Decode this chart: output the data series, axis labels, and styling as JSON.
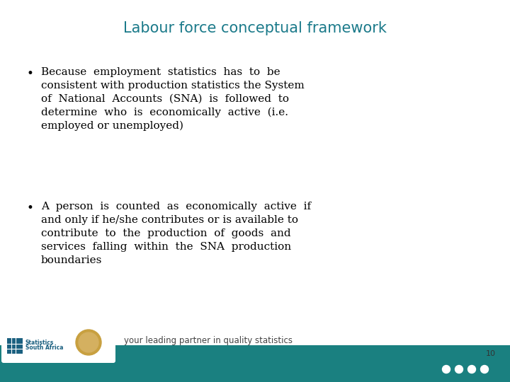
{
  "title": "Labour force conceptual framework",
  "title_color": "#1B7A8A",
  "title_fontsize": 15,
  "bg_color": "#FFFFFF",
  "footer_bar_color": "#1A8080",
  "footer_text": "your leading partner in quality statistics",
  "footer_text_color": "#444444",
  "page_number": "10",
  "bullet_color": "#000000",
  "bullet_fontsize": 11.0,
  "bullet1_lines": [
    "Because  employment  statistics  has  to  be",
    "consistent with production statistics the System",
    "of  National  Accounts  (SNA)  is  followed  to",
    "determine  who  is  economically  active  (i.e.",
    "employed or unemployed)"
  ],
  "bullet2_lines": [
    "A  person  is  counted  as  economically  active  if",
    "and only if he/she contributes or is available to",
    "contribute  to  the  production  of  goods  and",
    "services  falling  within  the  SNA  production",
    "boundaries"
  ]
}
